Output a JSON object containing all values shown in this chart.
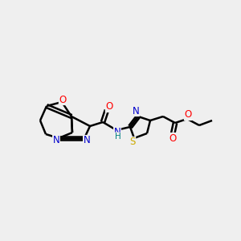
{
  "bg_color": "#efefef",
  "bond_color": "#000000",
  "atom_colors": {
    "O": "#ff0000",
    "N": "#0000cc",
    "S": "#ccaa00",
    "NH_color": "#008080",
    "C": "#000000"
  },
  "figsize": [
    3.0,
    3.0
  ],
  "dpi": 100,
  "lw": 1.8,
  "fontsize": 8.5
}
